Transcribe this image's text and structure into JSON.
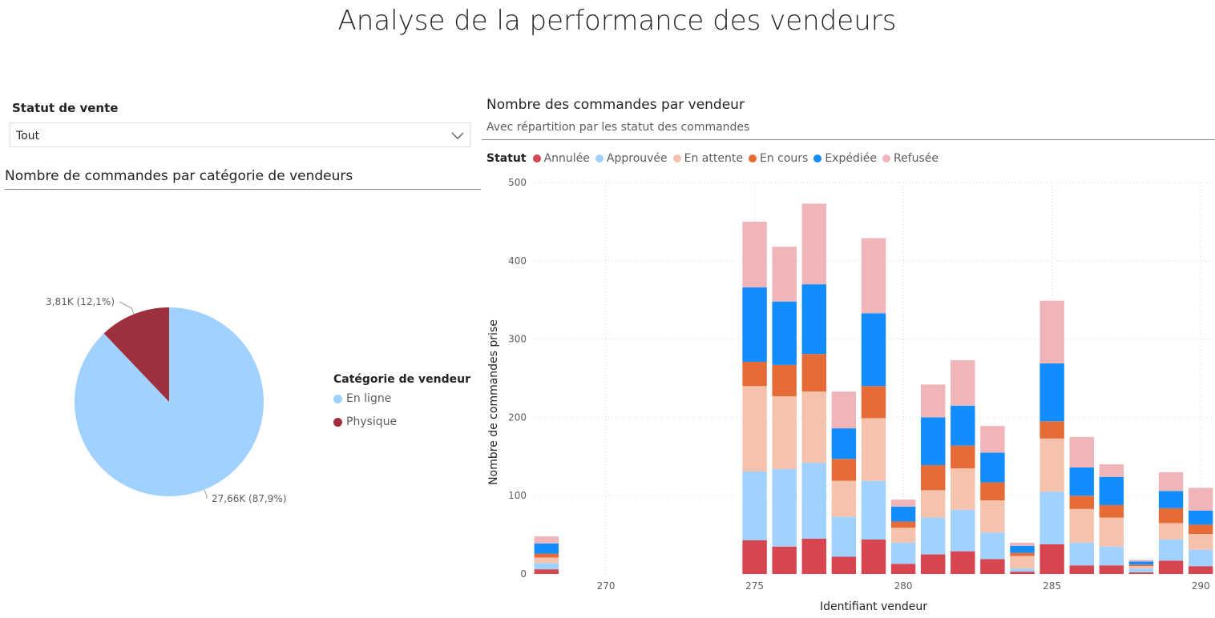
{
  "title": "Analyse de la performance des vendeurs",
  "slicer": {
    "label": "Statut de vente",
    "value": "Tout",
    "chevron_icon": "chevron-down-icon"
  },
  "pie_panel": {
    "title": "Nombre de commandes par catégorie de vendeurs",
    "legend_title": "Catégorie de vendeur"
  },
  "bar_panel": {
    "title": "Nombre des commandes par vendeur",
    "subtitle": "Avec répartition par les statut des commandes",
    "legend_title": "Statut"
  },
  "chart_data": [
    {
      "type": "pie",
      "title": "Nombre de commandes par catégorie de vendeurs",
      "legend_title": "Catégorie de vendeur",
      "slices": [
        {
          "name": "En ligne",
          "value": 27660,
          "label": "27,66K (87,9%)",
          "color": "#a0d1ff"
        },
        {
          "name": "Physique",
          "value": 3810,
          "label": "3,81K (12,1%)",
          "color": "#9e2f3e"
        }
      ]
    },
    {
      "type": "bar",
      "stacked": true,
      "title": "Nombre des commandes par vendeur",
      "subtitle": "Avec répartition par les statut des commandes",
      "xlabel": "Identifiant vendeur",
      "ylabel": "Nombre de commandes prise",
      "xlim": [
        267.6,
        290.4
      ],
      "ylim": [
        0,
        500
      ],
      "x_ticks": [
        270,
        275,
        280,
        285,
        290
      ],
      "y_ticks": [
        0,
        100,
        200,
        300,
        400,
        500
      ],
      "grid": true,
      "legend_title": "Statut",
      "legend_position": "top-left",
      "x": [
        268,
        275,
        276,
        277,
        278,
        279,
        280,
        281,
        282,
        283,
        284,
        285,
        286,
        287,
        288,
        289,
        290
      ],
      "series": [
        {
          "name": "Annulée",
          "color": "#d64550",
          "values": [
            6,
            43,
            35,
            45,
            22,
            44,
            13,
            25,
            29,
            19,
            3,
            38,
            11,
            11,
            2,
            17,
            10
          ]
        },
        {
          "name": "Approuvée",
          "color": "#a0d1ff",
          "values": [
            8,
            88,
            99,
            97,
            51,
            75,
            27,
            47,
            53,
            34,
            4,
            67,
            29,
            24,
            5,
            27,
            21
          ]
        },
        {
          "name": "En attente",
          "color": "#f4c2ad",
          "values": [
            7,
            109,
            93,
            91,
            46,
            80,
            19,
            35,
            53,
            41,
            16,
            68,
            43,
            37,
            3,
            21,
            20
          ]
        },
        {
          "name": "En cours",
          "color": "#e66c37",
          "values": [
            5,
            31,
            40,
            48,
            28,
            41,
            8,
            32,
            29,
            23,
            4,
            22,
            17,
            16,
            2,
            19,
            12
          ]
        },
        {
          "name": "Expédiée",
          "color": "#118dff",
          "values": [
            13,
            95,
            81,
            89,
            39,
            93,
            19,
            61,
            51,
            38,
            9,
            74,
            36,
            36,
            4,
            22,
            18
          ]
        },
        {
          "name": "Refusée",
          "color": "#efb5b9",
          "values": [
            9,
            84,
            70,
            103,
            47,
            96,
            9,
            42,
            58,
            34,
            4,
            80,
            39,
            16,
            2,
            24,
            29
          ]
        }
      ]
    }
  ]
}
